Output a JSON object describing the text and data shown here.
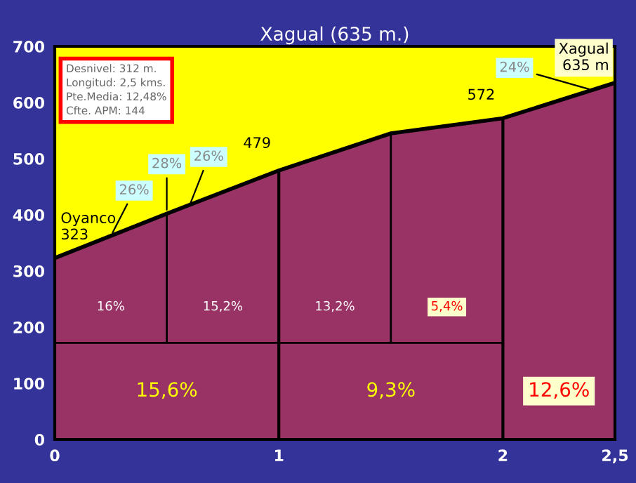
{
  "chart_data": {
    "type": "area",
    "title": "Xagual (635 m.)",
    "x": [
      0,
      0.5,
      1,
      1.5,
      2,
      2.5
    ],
    "series": [
      {
        "color": "#993366",
        "values": [
          323,
          402,
          479,
          545,
          572,
          635
        ]
      }
    ],
    "xlim": [
      0,
      2.5
    ],
    "ylim": [
      0,
      700
    ],
    "xticks": [
      0,
      1,
      2,
      {
        "value": 2.5,
        "label": "2,5"
      }
    ],
    "yticks": [
      0,
      100,
      200,
      300,
      400,
      500,
      600,
      700
    ],
    "grid": false,
    "legend": false,
    "ref_lines": [
      {
        "axis": "x",
        "value": 0.5
      },
      {
        "axis": "x",
        "value": 1
      },
      {
        "axis": "x",
        "value": 1.5
      },
      {
        "axis": "x",
        "value": 2
      },
      {
        "axis": "y",
        "value": 172
      }
    ],
    "annotations": [
      "Desnivel: 312 m.\nLongitud: 2,5 kms.\nPte.Media: 12,48%\nCfte. APM: 144",
      {
        "text": "Oyanco\n323",
        "x": 0,
        "y": 323
      },
      {
        "text": "479",
        "x": 1,
        "y": 479
      },
      {
        "text": "572",
        "x": 2,
        "y": 572
      },
      {
        "text": "Xagual\n635 m",
        "x": 2.5,
        "y": 635
      },
      {
        "text": "26%",
        "x": 0.25,
        "y": 362
      },
      {
        "text": "28%",
        "x": 0.5,
        "y": 402
      },
      {
        "text": "26%",
        "x": 0.6,
        "y": 415
      },
      {
        "text": "24%",
        "x": 2.4,
        "y": 622
      },
      "16%",
      "15,2%",
      "13,2%",
      "5,4%",
      "15,6%",
      "9,3%",
      "12,6%"
    ]
  }
}
